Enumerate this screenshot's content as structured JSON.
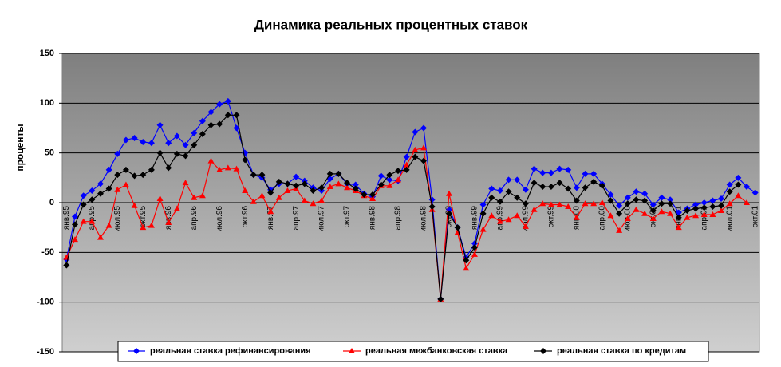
{
  "chart_data": {
    "type": "line",
    "title": "Динамика реальных процентных ставок",
    "y_label": "проценты",
    "categories": [
      "янв.95",
      null,
      null,
      "апр.95",
      null,
      null,
      "июл.95",
      null,
      null,
      "окт.95",
      null,
      null,
      "янв.96",
      null,
      null,
      "апр.96",
      null,
      null,
      "июл.96",
      null,
      null,
      "окт.96",
      null,
      null,
      "янв.97",
      null,
      null,
      "апр.97",
      null,
      null,
      "июл.97",
      null,
      null,
      "окт.97",
      null,
      null,
      "янв.98",
      null,
      null,
      "апр.98",
      null,
      null,
      "июл.98",
      null,
      null,
      "окт.98",
      null,
      null,
      "янв.99",
      null,
      null,
      "апр.99",
      null,
      null,
      "июл.99",
      null,
      null,
      "окт.99",
      null,
      null,
      "янв.00",
      null,
      null,
      "апр.00",
      null,
      null,
      "июл.00",
      null,
      null,
      "окт.00",
      null,
      null,
      "янв.01",
      null,
      null,
      "апр.01",
      null,
      null,
      "июл.01",
      null,
      null,
      "окт.01"
    ],
    "series": [
      {
        "name": "реальная ставка рефинансирования",
        "color": "#0000ff",
        "marker": "diamond",
        "values": [
          -57,
          -14,
          7,
          12,
          19,
          33,
          49,
          63,
          65,
          61,
          60,
          78,
          60,
          67,
          58,
          70,
          82,
          91,
          99,
          102,
          75,
          50,
          28,
          25,
          13,
          19,
          19,
          26,
          22,
          15,
          12,
          24,
          29,
          19,
          18,
          9,
          6,
          27,
          23,
          22,
          46,
          71,
          75,
          3,
          -97,
          -7,
          -25,
          -55,
          -41,
          -2,
          14,
          12,
          23,
          23,
          13,
          34,
          30,
          30,
          34,
          33,
          15,
          29,
          29,
          19,
          8,
          -3,
          5,
          11,
          9,
          -2,
          5,
          3,
          -10,
          -6,
          -2,
          0,
          2,
          4,
          18,
          25,
          16,
          10
        ]
      },
      {
        "name": "реальная межбанковская ставка",
        "color": "#ff0000",
        "marker": "triangle",
        "values": [
          -55,
          -37,
          -19,
          -19,
          -35,
          -23,
          13,
          18,
          -3,
          -25,
          -23,
          4,
          -20,
          -6,
          20,
          5,
          7,
          42,
          33,
          35,
          34,
          12,
          1,
          7,
          -9,
          5,
          12,
          14,
          2,
          -1,
          2,
          16,
          19,
          15,
          12,
          7,
          4,
          17,
          17,
          23,
          38,
          53,
          55,
          -7,
          -97,
          9,
          -30,
          -66,
          -52,
          -27,
          -13,
          -19,
          -17,
          -13,
          -24,
          -7,
          -1,
          -2,
          -2,
          -4,
          -15,
          -1,
          -1,
          0,
          -13,
          -28,
          -16,
          -7,
          -11,
          -16,
          -9,
          -11,
          -25,
          -15,
          -13,
          -12,
          -12,
          -8,
          -1,
          7,
          0,
          null
        ]
      },
      {
        "name": "реальная ставка по кредитам",
        "color": "#000000",
        "marker": "diamond",
        "values": [
          -63,
          -22,
          -2,
          3,
          9,
          14,
          28,
          33,
          27,
          28,
          33,
          50,
          35,
          49,
          47,
          58,
          69,
          78,
          79,
          88,
          88,
          43,
          28,
          28,
          10,
          21,
          19,
          17,
          19,
          12,
          15,
          29,
          29,
          20,
          14,
          8,
          8,
          18,
          28,
          32,
          33,
          46,
          42,
          -4,
          -97,
          -11,
          -25,
          -58,
          -45,
          -11,
          5,
          1,
          11,
          5,
          -1,
          20,
          16,
          16,
          20,
          14,
          2,
          15,
          21,
          17,
          2,
          -11,
          -1,
          3,
          2,
          -8,
          -1,
          -1,
          -15,
          -8,
          -6,
          -5,
          -4,
          -3,
          11,
          18,
          null,
          null
        ]
      }
    ],
    "ylim": [
      -150,
      150
    ],
    "yticks": [
      -150,
      -100,
      -50,
      0,
      50,
      100,
      150
    ],
    "grid": true
  }
}
